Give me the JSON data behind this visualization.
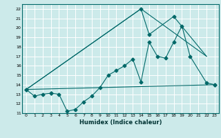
{
  "title": "",
  "xlabel": "Humidex (Indice chaleur)",
  "xlim": [
    -0.5,
    23.5
  ],
  "ylim": [
    11,
    22.5
  ],
  "xticks": [
    0,
    1,
    2,
    3,
    4,
    5,
    6,
    7,
    8,
    9,
    10,
    11,
    12,
    13,
    14,
    15,
    16,
    17,
    18,
    19,
    20,
    21,
    22,
    23
  ],
  "yticks": [
    11,
    12,
    13,
    14,
    15,
    16,
    17,
    18,
    19,
    20,
    21,
    22
  ],
  "bg_color": "#cceaea",
  "line_color": "#006868",
  "grid_color": "#ffffff",
  "series": [
    {
      "x": [
        0,
        1,
        2,
        3,
        4,
        5,
        6,
        7,
        8,
        9,
        10,
        11,
        12,
        13,
        14,
        15,
        16,
        17,
        18,
        19,
        20,
        22,
        23
      ],
      "y": [
        13.5,
        12.8,
        13.0,
        13.1,
        13.0,
        11.2,
        11.4,
        12.2,
        12.8,
        13.7,
        15.0,
        15.5,
        16.0,
        16.7,
        14.3,
        18.5,
        17.0,
        16.8,
        18.5,
        20.2,
        17.0,
        14.2,
        14.0
      ],
      "marker": "D",
      "markersize": 2.5,
      "lw": 0.8
    },
    {
      "x": [
        0,
        3,
        14,
        15,
        18,
        19,
        21,
        22,
        23
      ],
      "y": [
        13.5,
        13.1,
        22.0,
        19.3,
        21.2,
        null,
        null,
        null,
        14.0
      ],
      "marker": "D",
      "markersize": 2.5,
      "lw": 0
    },
    {
      "x": [
        0,
        14,
        15,
        18,
        22
      ],
      "y": [
        13.5,
        22.0,
        19.3,
        21.2,
        17.0
      ],
      "marker": null,
      "markersize": 0,
      "lw": 0.8
    },
    {
      "x": [
        0,
        23
      ],
      "y": [
        13.5,
        14.0
      ],
      "marker": null,
      "markersize": 0,
      "lw": 0.8
    },
    {
      "x": [
        0,
        14,
        22
      ],
      "y": [
        13.5,
        22.0,
        17.0
      ],
      "marker": null,
      "markersize": 0,
      "lw": 0.8
    }
  ]
}
